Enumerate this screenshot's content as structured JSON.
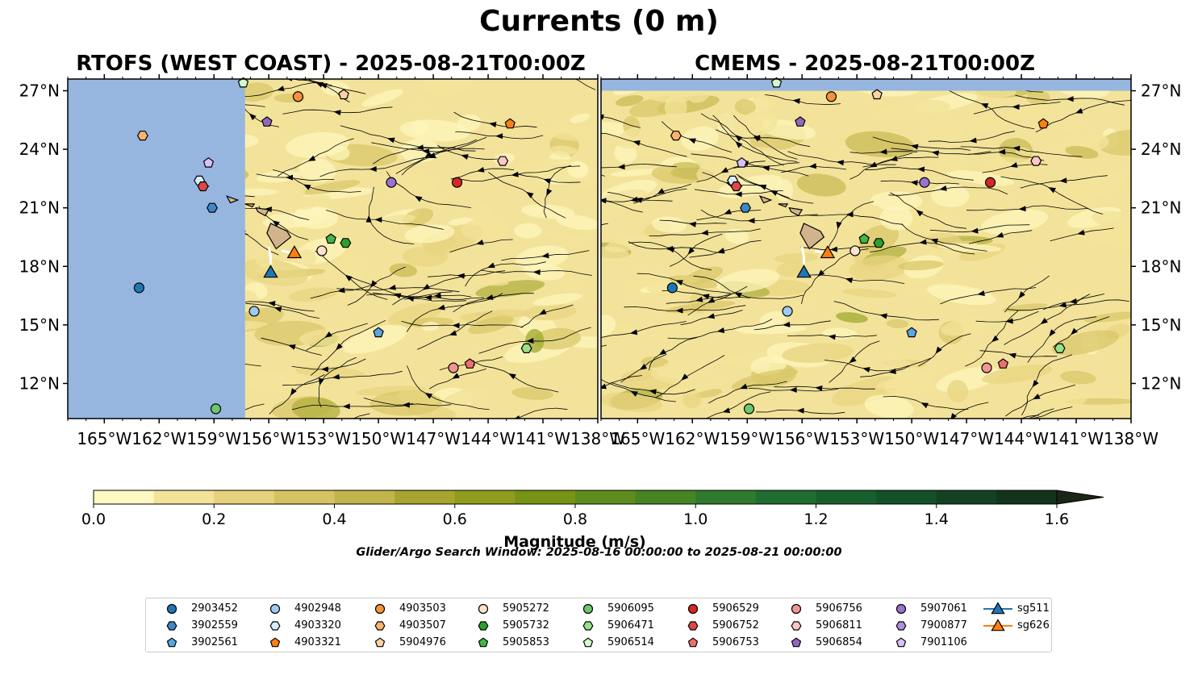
{
  "figure": {
    "title": "Currents (0 m)",
    "left_title": "RTOFS (WEST COAST) - 2025-08-21T00:00Z",
    "right_title": "CMEMS - 2025-08-21T00:00Z",
    "search_window": "Glider/Argo Search Window: 2025-08-16 00:00:00 to 2025-08-21 00:00:00"
  },
  "axes": {
    "lon_ticks": [
      "165°W",
      "162°W",
      "159°W",
      "156°W",
      "153°W",
      "150°W",
      "147°W",
      "144°W",
      "141°W",
      "138°W"
    ],
    "lat_ticks": [
      "27°N",
      "24°N",
      "21°N",
      "18°N",
      "15°N",
      "12°N"
    ],
    "lon_values": [
      -165,
      -162,
      -159,
      -156,
      -153,
      -150,
      -147,
      -144,
      -141,
      -138
    ],
    "lat_values": [
      27,
      24,
      21,
      18,
      15,
      12
    ],
    "lon_range": [
      -167,
      -138
    ],
    "lat_range": [
      10.2,
      27.6
    ]
  },
  "colorbar": {
    "label": "Magnitude (m/s)",
    "ticks": [
      "0.0",
      "0.2",
      "0.4",
      "0.6",
      "0.8",
      "1.0",
      "1.2",
      "1.4",
      "1.6"
    ],
    "range": [
      0.0,
      1.6
    ],
    "extend": "max",
    "colors": [
      "#fff8c2",
      "#f3e39a",
      "#e6d27c",
      "#d4c362",
      "#c0b44a",
      "#a7a530",
      "#8f9c1c",
      "#779416",
      "#5f8c1c",
      "#468424",
      "#2f7a2c",
      "#1f6e30",
      "#17602e",
      "#145129",
      "#134223",
      "#14331c",
      "#1b2716"
    ]
  },
  "colors": {
    "ocean_mask": "#96b6e0",
    "land": "#d2b48c"
  },
  "legend": {
    "items": [
      {
        "label": "2903452",
        "marker": "circle",
        "color": "#1f77b4"
      },
      {
        "label": "3902559",
        "marker": "hexagon",
        "color": "#3f88c5"
      },
      {
        "label": "3902561",
        "marker": "pentagon",
        "color": "#5aa6e0"
      },
      {
        "label": "4902948",
        "marker": "circle",
        "color": "#9fcbf2"
      },
      {
        "label": "4903320",
        "marker": "hexagon",
        "color": "#d9ecfb"
      },
      {
        "label": "4903321",
        "marker": "pentagon",
        "color": "#ff7f0e"
      },
      {
        "label": "4903503",
        "marker": "circle",
        "color": "#f5923a"
      },
      {
        "label": "4903507",
        "marker": "hexagon",
        "color": "#f8b46f"
      },
      {
        "label": "5904976",
        "marker": "pentagon",
        "color": "#ffd2a6"
      },
      {
        "label": "5905272",
        "marker": "circle",
        "color": "#fde2cc"
      },
      {
        "label": "5905732",
        "marker": "hexagon",
        "color": "#2ca02c"
      },
      {
        "label": "5905853",
        "marker": "pentagon",
        "color": "#45b545"
      },
      {
        "label": "5906095",
        "marker": "circle",
        "color": "#6dc76d"
      },
      {
        "label": "5906471",
        "marker": "hexagon",
        "color": "#98df8a"
      },
      {
        "label": "5906514",
        "marker": "pentagon",
        "color": "#d4f7cc"
      },
      {
        "label": "5906529",
        "marker": "circle",
        "color": "#d62728"
      },
      {
        "label": "5906752",
        "marker": "hexagon",
        "color": "#e04647"
      },
      {
        "label": "5906753",
        "marker": "pentagon",
        "color": "#ec6f6f"
      },
      {
        "label": "5906756",
        "marker": "circle",
        "color": "#f09595"
      },
      {
        "label": "5906811",
        "marker": "hexagon",
        "color": "#fbc7c7"
      },
      {
        "label": "5906854",
        "marker": "pentagon",
        "color": "#9467bd"
      },
      {
        "label": "5907061",
        "marker": "circle",
        "color": "#9b72cf"
      },
      {
        "label": "7900877",
        "marker": "hexagon",
        "color": "#b18fe0"
      },
      {
        "label": "7901106",
        "marker": "pentagon",
        "color": "#d8c2f5"
      },
      {
        "label": "sg511",
        "marker": "triangle",
        "color": "#1f77b4"
      },
      {
        "label": "sg626",
        "marker": "triangle",
        "color": "#ff7f0e"
      }
    ]
  },
  "markers_left": [
    {
      "id": "2903452",
      "lon": -163.1,
      "lat": 16.9
    },
    {
      "id": "3902559",
      "lon": -159.1,
      "lat": 21.0
    },
    {
      "id": "3902561",
      "lon": -150.0,
      "lat": 14.6
    },
    {
      "id": "4902948",
      "lon": -156.8,
      "lat": 15.7
    },
    {
      "id": "4903320",
      "lon": -159.8,
      "lat": 22.4
    },
    {
      "id": "4903321",
      "lon": -142.8,
      "lat": 25.3
    },
    {
      "id": "4903503",
      "lon": -154.4,
      "lat": 26.7
    },
    {
      "id": "4903507",
      "lon": -162.9,
      "lat": 24.7
    },
    {
      "id": "5904976",
      "lon": -151.9,
      "lat": 26.8
    },
    {
      "id": "5905272",
      "lon": -153.1,
      "lat": 18.8
    },
    {
      "id": "5905732",
      "lon": -151.8,
      "lat": 19.2
    },
    {
      "id": "5905853",
      "lon": -152.6,
      "lat": 19.4
    },
    {
      "id": "5906095",
      "lon": -158.9,
      "lat": 10.7
    },
    {
      "id": "5906471",
      "lon": -141.9,
      "lat": 13.8
    },
    {
      "id": "5906514",
      "lon": -157.4,
      "lat": 27.4
    },
    {
      "id": "5906529",
      "lon": -145.7,
      "lat": 22.3
    },
    {
      "id": "5906752",
      "lon": -159.6,
      "lat": 22.1
    },
    {
      "id": "5906753",
      "lon": -145.0,
      "lat": 13.0
    },
    {
      "id": "5906756",
      "lon": -145.9,
      "lat": 12.8
    },
    {
      "id": "5906811",
      "lon": -143.2,
      "lat": 23.4
    },
    {
      "id": "5907061",
      "lon": -149.3,
      "lat": 22.3
    },
    {
      "id": "7901106",
      "lon": -159.3,
      "lat": 23.3
    },
    {
      "id": "5906854",
      "lon": -156.1,
      "lat": 25.4
    },
    {
      "id": "sg511",
      "lon": -155.9,
      "lat": 17.7
    },
    {
      "id": "sg626",
      "lon": -154.6,
      "lat": 18.7
    }
  ],
  "markers_right": [
    {
      "id": "2903452",
      "lon": -163.1,
      "lat": 16.9
    },
    {
      "id": "3902559",
      "lon": -159.1,
      "lat": 21.0
    },
    {
      "id": "3902561",
      "lon": -150.0,
      "lat": 14.6
    },
    {
      "id": "4902948",
      "lon": -156.8,
      "lat": 15.7
    },
    {
      "id": "4903320",
      "lon": -159.8,
      "lat": 22.4
    },
    {
      "id": "4903321",
      "lon": -142.8,
      "lat": 25.3
    },
    {
      "id": "4903503",
      "lon": -154.4,
      "lat": 26.7
    },
    {
      "id": "4903507",
      "lon": -162.9,
      "lat": 24.7
    },
    {
      "id": "5904976",
      "lon": -151.9,
      "lat": 26.8
    },
    {
      "id": "5905272",
      "lon": -153.1,
      "lat": 18.8
    },
    {
      "id": "5905732",
      "lon": -151.8,
      "lat": 19.2
    },
    {
      "id": "5905853",
      "lon": -152.6,
      "lat": 19.4
    },
    {
      "id": "5906095",
      "lon": -158.9,
      "lat": 10.7
    },
    {
      "id": "5906471",
      "lon": -141.9,
      "lat": 13.8
    },
    {
      "id": "5906514",
      "lon": -157.4,
      "lat": 27.4
    },
    {
      "id": "5906529",
      "lon": -145.7,
      "lat": 22.3
    },
    {
      "id": "5906752",
      "lon": -159.6,
      "lat": 22.1
    },
    {
      "id": "5906753",
      "lon": -145.0,
      "lat": 13.0
    },
    {
      "id": "5906756",
      "lon": -145.9,
      "lat": 12.8
    },
    {
      "id": "5906811",
      "lon": -143.2,
      "lat": 23.4
    },
    {
      "id": "5907061",
      "lon": -149.3,
      "lat": 22.3
    },
    {
      "id": "7901106",
      "lon": -159.3,
      "lat": 23.3
    },
    {
      "id": "5906854",
      "lon": -156.1,
      "lat": 25.4
    },
    {
      "id": "sg511",
      "lon": -155.9,
      "lat": 17.7
    },
    {
      "id": "sg626",
      "lon": -154.6,
      "lat": 18.7
    }
  ]
}
